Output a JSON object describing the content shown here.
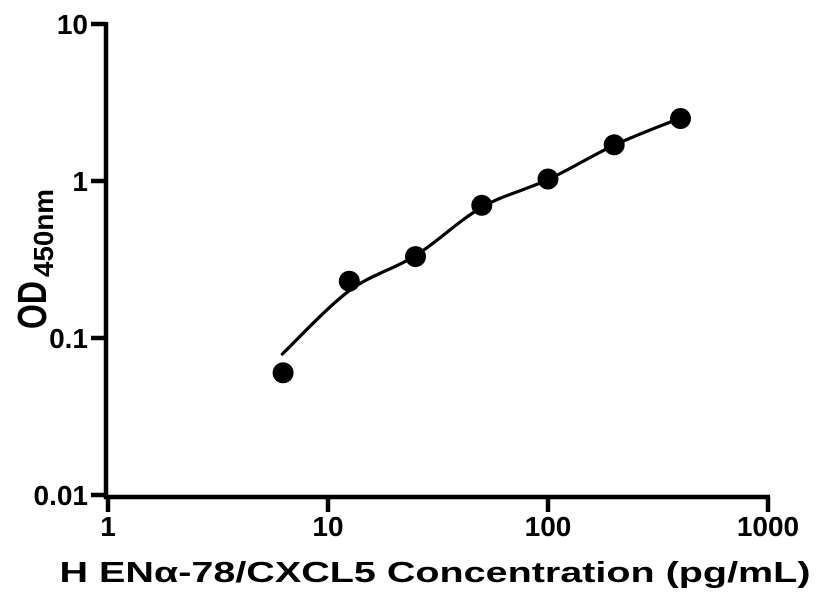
{
  "figure": {
    "background_color": "#ffffff",
    "ink_color": "#000000"
  },
  "chart_data": {
    "type": "scatter",
    "subtype": "elisa-standard-curve-with-fit",
    "title": "",
    "xlabel": "H ENα-78/CXCL5 Concentration (pg/mL)",
    "ylabel": "OD450nm",
    "ylabel_main": "OD",
    "ylabel_sub": "450nm",
    "x_scale": "log10",
    "y_scale": "log10",
    "xlim": [
      1,
      1000
    ],
    "ylim": [
      0.01,
      10
    ],
    "grid": false,
    "legend": null,
    "marker": "filled-circle",
    "marker_color": "#000000",
    "curve_color": "#000000",
    "x_ticks": [
      {
        "value": 1,
        "label": "1"
      },
      {
        "value": 10,
        "label": "10"
      },
      {
        "value": 100,
        "label": "100"
      },
      {
        "value": 1000,
        "label": "1000"
      }
    ],
    "y_ticks": [
      {
        "value": 10,
        "label": "10"
      },
      {
        "value": 1,
        "label": "1"
      },
      {
        "value": 0.1,
        "label": "0.1"
      },
      {
        "value": 0.01,
        "label": "0.01"
      }
    ],
    "points": [
      {
        "x": 6.25,
        "y": 0.06
      },
      {
        "x": 12.5,
        "y": 0.23
      },
      {
        "x": 25,
        "y": 0.33
      },
      {
        "x": 50,
        "y": 0.7
      },
      {
        "x": 100,
        "y": 1.03
      },
      {
        "x": 200,
        "y": 1.7
      },
      {
        "x": 400,
        "y": 2.5
      }
    ],
    "fit_curve": [
      {
        "x": 6.2,
        "y": 0.079
      },
      {
        "x": 12.5,
        "y": 0.2
      },
      {
        "x": 25,
        "y": 0.335
      },
      {
        "x": 50,
        "y": 0.68
      },
      {
        "x": 100,
        "y": 1.02
      },
      {
        "x": 200,
        "y": 1.69
      },
      {
        "x": 400,
        "y": 2.52
      }
    ]
  }
}
